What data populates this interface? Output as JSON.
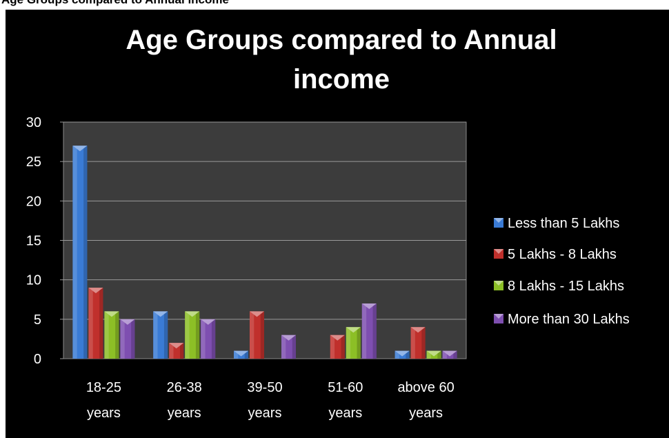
{
  "header_strip": "Age Groups compared to Annual income",
  "chart_data": {
    "type": "bar",
    "title": "Age Groups compared to Annual income",
    "categories": [
      [
        "18-25",
        "years"
      ],
      [
        "26-38",
        "years"
      ],
      [
        "39-50",
        "years"
      ],
      [
        "51-60",
        "years"
      ],
      [
        "above 60",
        "years"
      ]
    ],
    "ylim": [
      0,
      30
    ],
    "yticks": [
      0,
      5,
      10,
      15,
      20,
      25,
      30
    ],
    "grid": true,
    "legend_position": "right",
    "series": [
      {
        "name": "Less than 5 Lakhs",
        "color": "#3a7bd5",
        "values": [
          27,
          6,
          1,
          0,
          1
        ]
      },
      {
        "name": "5 Lakhs - 8 Lakhs",
        "color": "#c0302c",
        "values": [
          9,
          2,
          6,
          3,
          4
        ]
      },
      {
        "name": "8 Lakhs - 15 Lakhs",
        "color": "#8cbf26",
        "values": [
          6,
          6,
          0,
          4,
          1
        ]
      },
      {
        "name": "More than 30 Lakhs",
        "color": "#7e4fb0",
        "values": [
          5,
          5,
          3,
          7,
          1
        ]
      }
    ]
  }
}
